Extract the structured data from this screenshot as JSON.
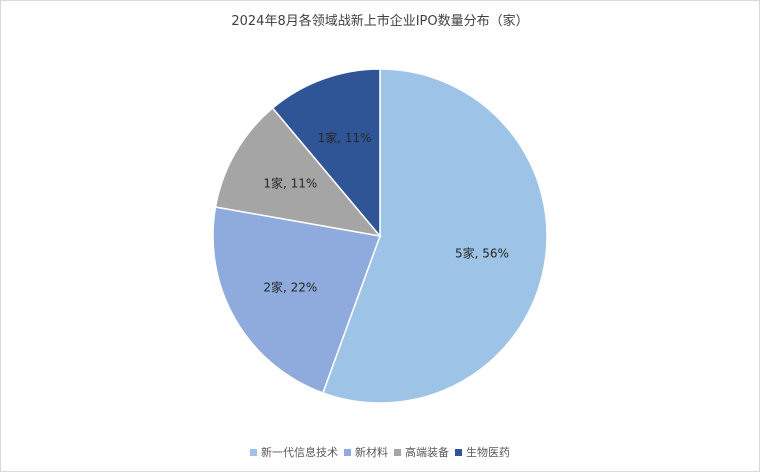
{
  "chart_data": {
    "type": "pie",
    "title": "2024年8月各领域战新上市企业IPO数量分布（家）",
    "categories": [
      "新一代信息技术",
      "新材料",
      "高端装备",
      "生物医药"
    ],
    "values": [
      5,
      2,
      1,
      1
    ],
    "percent_labels": [
      "56%",
      "22%",
      "11%",
      "11%"
    ],
    "data_labels": [
      "5家, 56%",
      "2家, 22%",
      "1家, 11%",
      "1家, 11%"
    ],
    "colors": [
      "#9dc3e6",
      "#8faadc",
      "#a5a5a5",
      "#2f5597"
    ],
    "start_angle_deg": 0,
    "direction": "clockwise",
    "legend_position": "bottom"
  }
}
